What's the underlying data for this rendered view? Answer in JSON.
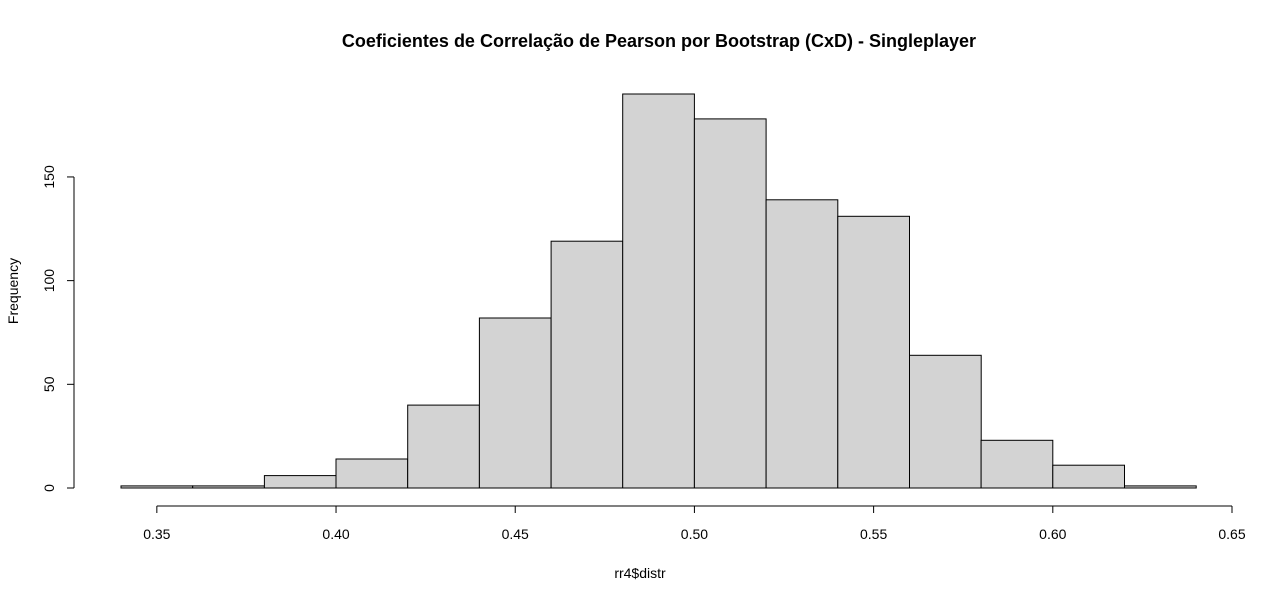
{
  "chart_data": {
    "type": "bar",
    "title": "Coeficientes de Correlação de Pearson por Bootstrap (CxD) - Singleplayer",
    "xlabel": "rr4$distr",
    "ylabel": "Frequency",
    "bin_edges": [
      0.34,
      0.36,
      0.38,
      0.4,
      0.42,
      0.44,
      0.46,
      0.48,
      0.5,
      0.52,
      0.54,
      0.56,
      0.58,
      0.6,
      0.62,
      0.64
    ],
    "values": [
      1,
      1,
      6,
      14,
      40,
      82,
      119,
      190,
      178,
      139,
      131,
      64,
      23,
      11,
      1
    ],
    "xlim": [
      0.34,
      0.65
    ],
    "ylim": [
      0,
      190
    ],
    "x_ticks": [
      "0.35",
      "0.40",
      "0.45",
      "0.50",
      "0.55",
      "0.60",
      "0.65"
    ],
    "y_ticks": [
      "0",
      "50",
      "100",
      "150"
    ],
    "bar_fill": "#d3d3d3",
    "bar_stroke": "#000000",
    "grid": false,
    "legend": "none"
  }
}
